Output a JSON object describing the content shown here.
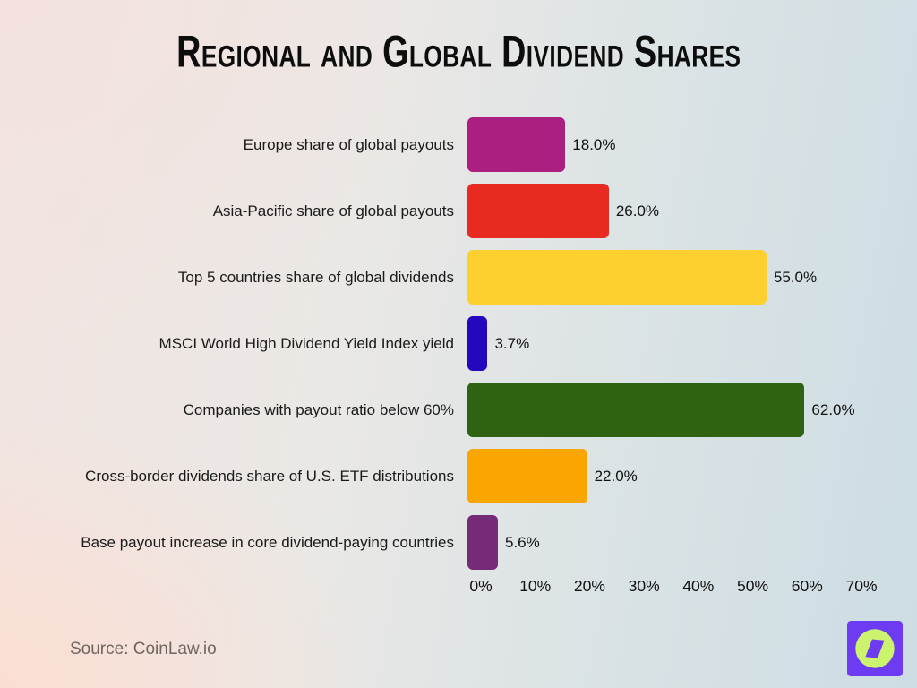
{
  "title": "Regional and Global Dividend Shares",
  "source": "Source: CoinLaw.io",
  "logo": {
    "icon": "compass-icon",
    "bg_color": "#6d3bf2",
    "circle_color": "#ccf36e"
  },
  "chart_data": {
    "type": "bar",
    "orientation": "horizontal",
    "title": "Regional and Global Dividend Shares",
    "categories": [
      "Europe share of global payouts",
      "Asia-Pacific share of global payouts",
      "Top 5 countries share of global dividends",
      "MSCI World High Dividend Yield Index yield",
      "Companies with payout ratio below 60%",
      "Cross-border dividends share of U.S. ETF distributions",
      "Base payout increase in core dividend-paying countries"
    ],
    "values": [
      18.0,
      26.0,
      55.0,
      3.7,
      62.0,
      22.0,
      5.6
    ],
    "value_labels": [
      "18.0%",
      "26.0%",
      "55.0%",
      "3.7%",
      "62.0%",
      "22.0%",
      "5.6%"
    ],
    "bar_colors": [
      "#ab1f80",
      "#e82b20",
      "#fdd02f",
      "#2209be",
      "#2f6311",
      "#fba500",
      "#762b79"
    ],
    "xlim": [
      0,
      70
    ],
    "x_ticks": [
      "0%",
      "10%",
      "20%",
      "30%",
      "40%",
      "50%",
      "60%",
      "70%"
    ],
    "grid": false,
    "legend": false
  }
}
